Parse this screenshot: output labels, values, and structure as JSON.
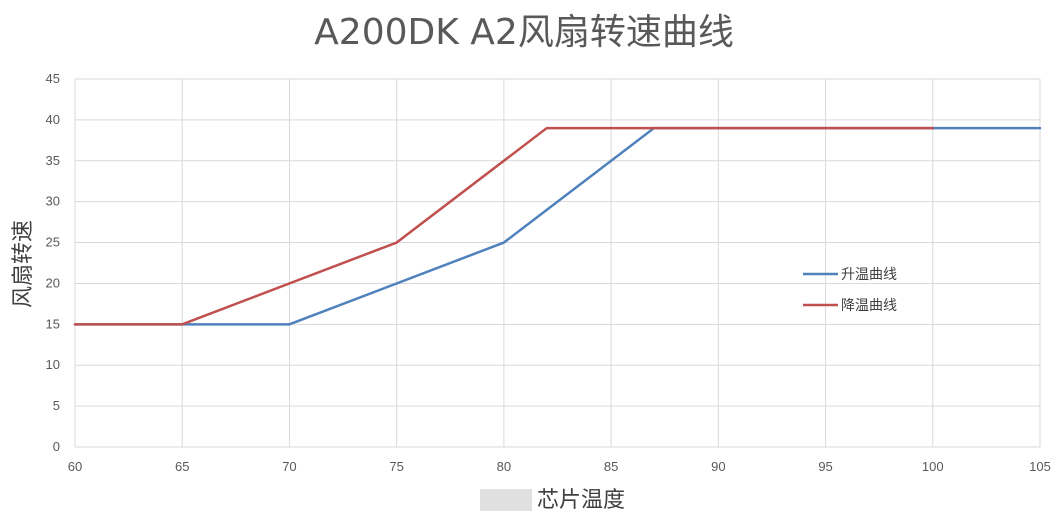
{
  "chart_data": {
    "type": "line",
    "title": "A200DK A2风扇转速曲线",
    "xlabel": "芯片温度",
    "ylabel": "风扇转速",
    "xlim": [
      60,
      105
    ],
    "ylim": [
      0,
      45
    ],
    "x_ticks": [
      60,
      65,
      70,
      75,
      80,
      85,
      90,
      95,
      100,
      105
    ],
    "y_ticks": [
      0,
      5,
      10,
      15,
      20,
      25,
      30,
      35,
      40,
      45
    ],
    "grid": true,
    "legend_position": "right",
    "series": [
      {
        "name": "升温曲线",
        "color": "#4f81bd",
        "points": [
          [
            60,
            15
          ],
          [
            70,
            15
          ],
          [
            80,
            25
          ],
          [
            87,
            39
          ],
          [
            105,
            39
          ]
        ]
      },
      {
        "name": "降温曲线",
        "color": "#c0504d",
        "points": [
          [
            60,
            15
          ],
          [
            65,
            15
          ],
          [
            75,
            25
          ],
          [
            82,
            39
          ],
          [
            100,
            39
          ]
        ]
      }
    ]
  }
}
